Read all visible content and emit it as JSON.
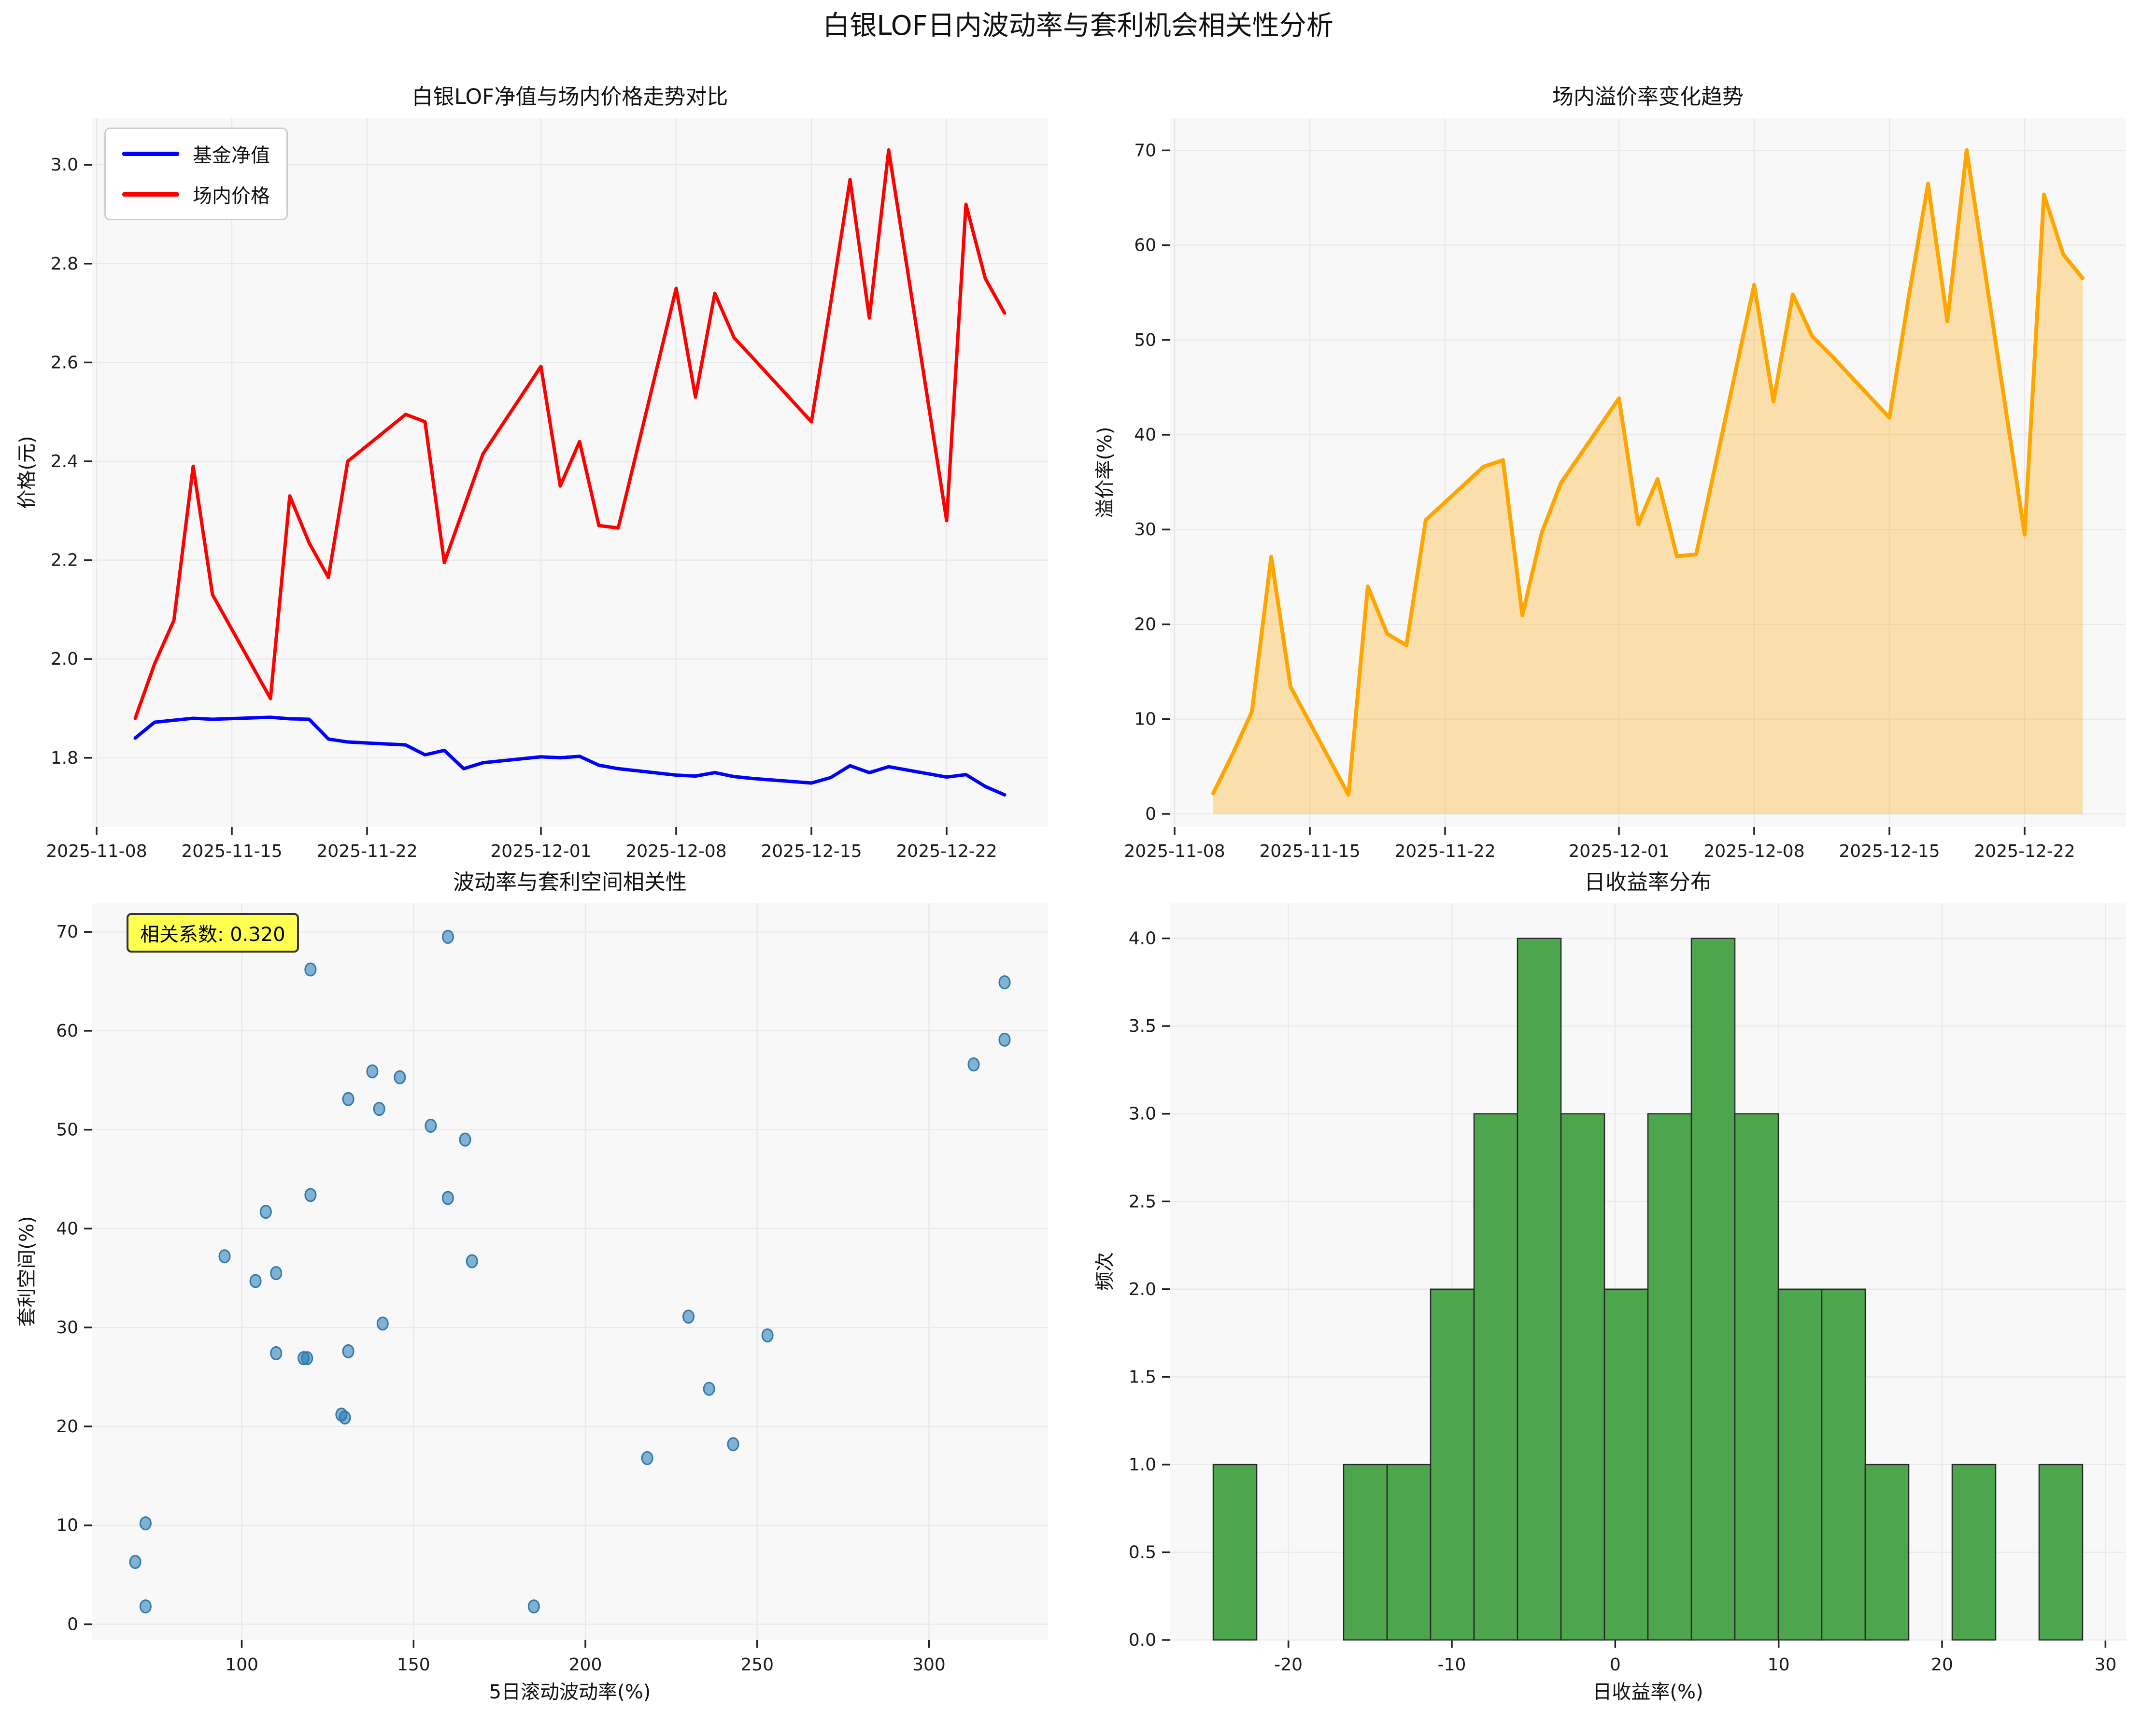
{
  "page_title": "白银LOF日内波动率与套利机会相关性分析",
  "theme": {
    "plot_bg": "#f8f8f8",
    "grid": "#e9e9e9",
    "tick_color": "#222222",
    "label_color": "#1a1a1a",
    "nav_color": "#0000ff",
    "price_color": "#ff0000",
    "premium_line_color": "#ffa500",
    "premium_fill_color": "rgba(255,165,0,0.30)",
    "scatter_fill": "rgba(31,119,180,0.55)",
    "scatter_edge": "#3178ab",
    "hist_fill": "#4da64d",
    "hist_edge": "#262626",
    "annotation_bg": "#ffff4f"
  },
  "chart_data": [
    {
      "id": "price_comparison",
      "type": "line",
      "title": "白银LOF净值与场内价格走势对比",
      "ylabel": "价格(元)",
      "legend": [
        "基金净值",
        "场内价格"
      ],
      "dates": [
        "2025-11-10",
        "2025-11-11",
        "2025-11-12",
        "2025-11-13",
        "2025-11-14",
        "2025-11-17",
        "2025-11-18",
        "2025-11-19",
        "2025-11-20",
        "2025-11-21",
        "2025-11-24",
        "2025-11-25",
        "2025-11-26",
        "2025-11-27",
        "2025-11-28",
        "2025-12-01",
        "2025-12-02",
        "2025-12-03",
        "2025-12-04",
        "2025-12-05",
        "2025-12-08",
        "2025-12-09",
        "2025-12-10",
        "2025-12-11",
        "2025-12-12",
        "2025-12-15",
        "2025-12-16",
        "2025-12-17",
        "2025-12-18",
        "2025-12-19",
        "2025-12-22",
        "2025-12-23",
        "2025-12-24",
        "2025-12-25"
      ],
      "series": [
        {
          "name": "基金净值",
          "color": "#0000ff",
          "values": [
            1.84,
            1.872,
            1.876,
            1.88,
            1.878,
            1.882,
            1.879,
            1.878,
            1.838,
            1.832,
            1.826,
            1.806,
            1.815,
            1.778,
            1.79,
            1.802,
            1.8,
            1.803,
            1.785,
            1.778,
            1.765,
            1.763,
            1.77,
            1.762,
            1.758,
            1.749,
            1.76,
            1.784,
            1.77,
            1.782,
            1.761,
            1.766,
            1.742,
            1.725
          ]
        },
        {
          "name": "场内价格",
          "color": "#ff0000",
          "values": [
            1.88,
            1.99,
            2.078,
            2.39,
            2.13,
            1.92,
            2.33,
            2.235,
            2.165,
            2.4,
            2.495,
            2.48,
            2.195,
            2.305,
            2.415,
            2.592,
            2.35,
            2.44,
            2.27,
            2.265,
            2.75,
            2.53,
            2.74,
            2.65,
            2.608,
            2.48,
            2.72,
            2.97,
            2.69,
            3.03,
            2.28,
            2.92,
            2.77,
            2.7
          ]
        }
      ],
      "x_tick_labels": [
        "2025-11-08",
        "2025-11-15",
        "2025-11-22",
        "2025-12-01",
        "2025-12-08",
        "2025-12-15",
        "2025-12-22"
      ],
      "y_tick_labels": [
        "1.8",
        "2.0",
        "2.2",
        "2.4",
        "2.6",
        "2.8",
        "3.0"
      ],
      "y_tick_values": [
        1.8,
        2.0,
        2.2,
        2.4,
        2.6,
        2.8,
        3.0
      ],
      "xlim_days": [
        -0.25,
        49.25
      ],
      "ylim": [
        1.66,
        3.095
      ]
    },
    {
      "id": "premium_trend",
      "type": "area",
      "title": "场内溢价率变化趋势",
      "ylabel": "溢价率(%)",
      "dates": [
        "2025-11-10",
        "2025-11-11",
        "2025-11-12",
        "2025-11-13",
        "2025-11-14",
        "2025-11-17",
        "2025-11-18",
        "2025-11-19",
        "2025-11-20",
        "2025-11-21",
        "2025-11-24",
        "2025-11-25",
        "2025-11-26",
        "2025-11-27",
        "2025-11-28",
        "2025-12-01",
        "2025-12-02",
        "2025-12-03",
        "2025-12-04",
        "2025-12-05",
        "2025-12-08",
        "2025-12-09",
        "2025-12-10",
        "2025-12-11",
        "2025-12-12",
        "2025-12-15",
        "2025-12-16",
        "2025-12-17",
        "2025-12-18",
        "2025-12-19",
        "2025-12-22",
        "2025-12-23",
        "2025-12-24",
        "2025-12-25"
      ],
      "values": [
        2.17,
        6.3,
        10.77,
        27.13,
        13.42,
        2.02,
        24.0,
        19.01,
        17.79,
        31.0,
        36.64,
        37.32,
        20.94,
        29.64,
        34.92,
        43.84,
        30.56,
        35.33,
        27.17,
        27.39,
        55.81,
        43.51,
        54.8,
        50.4,
        48.35,
        41.8,
        54.55,
        66.48,
        51.98,
        70.03,
        29.47,
        65.35,
        59.01,
        56.52
      ],
      "baseline": 0,
      "x_tick_labels": [
        "2025-11-08",
        "2025-11-15",
        "2025-11-22",
        "2025-12-01",
        "2025-12-08",
        "2025-12-15",
        "2025-12-22"
      ],
      "y_tick_labels": [
        "0",
        "10",
        "20",
        "30",
        "40",
        "50",
        "60",
        "70"
      ],
      "y_tick_values": [
        0,
        10,
        20,
        30,
        40,
        50,
        60,
        70
      ],
      "xlim_days": [
        -0.25,
        49.25
      ],
      "ylim": [
        -1.38,
        73.43
      ]
    },
    {
      "id": "vol_arb_scatter",
      "type": "scatter",
      "title": "波动率与套利空间相关性",
      "xlabel": "5日滚动波动率(%)",
      "ylabel": "套利空间(%)",
      "annotation": "相关系数: 0.320",
      "points": [
        [
          69,
          6.3
        ],
        [
          72,
          10.2
        ],
        [
          72,
          1.8
        ],
        [
          95,
          37.2
        ],
        [
          104,
          34.7
        ],
        [
          107,
          41.7
        ],
        [
          110,
          35.5
        ],
        [
          110,
          27.4
        ],
        [
          118,
          26.9
        ],
        [
          119,
          26.9
        ],
        [
          120,
          43.4
        ],
        [
          120,
          66.2
        ],
        [
          129,
          21.2
        ],
        [
          130,
          20.9
        ],
        [
          131,
          27.6
        ],
        [
          131,
          53.1
        ],
        [
          138,
          55.9
        ],
        [
          140,
          52.1
        ],
        [
          141,
          30.4
        ],
        [
          146,
          55.3
        ],
        [
          155,
          50.4
        ],
        [
          160,
          69.5
        ],
        [
          160,
          43.1
        ],
        [
          165,
          49.0
        ],
        [
          167,
          36.7
        ],
        [
          185,
          1.8
        ],
        [
          218,
          16.8
        ],
        [
          230,
          31.1
        ],
        [
          236,
          23.8
        ],
        [
          243,
          18.2
        ],
        [
          253,
          29.2
        ],
        [
          313,
          56.6
        ],
        [
          322,
          64.9
        ],
        [
          322,
          59.1
        ]
      ],
      "x_tick_labels": [
        "100",
        "150",
        "200",
        "250",
        "300"
      ],
      "x_tick_values": [
        100,
        150,
        200,
        250,
        300
      ],
      "y_tick_labels": [
        "0",
        "10",
        "20",
        "30",
        "40",
        "50",
        "60",
        "70"
      ],
      "y_tick_values": [
        0,
        10,
        20,
        30,
        40,
        50,
        60,
        70
      ],
      "xlim": [
        56.35,
        334.65
      ],
      "ylim": [
        -1.59,
        72.89
      ]
    },
    {
      "id": "returns_hist",
      "type": "histogram",
      "title": "日收益率分布",
      "xlabel": "日收益率(%)",
      "ylabel": "频次",
      "bin_start": -24.6,
      "bin_width": 2.66,
      "counts": [
        1,
        0,
        0,
        1,
        1,
        2,
        3,
        4,
        3,
        2,
        3,
        4,
        3,
        2,
        2,
        1,
        0,
        1,
        0,
        1
      ],
      "x_tick_labels": [
        "-20",
        "-10",
        "0",
        "10",
        "20",
        "30"
      ],
      "x_tick_values": [
        -20,
        -10,
        0,
        10,
        20,
        30
      ],
      "y_tick_labels": [
        "0.0",
        "0.5",
        "1.0",
        "1.5",
        "2.0",
        "2.5",
        "3.0",
        "3.5",
        "4.0"
      ],
      "y_tick_values": [
        0,
        0.5,
        1.0,
        1.5,
        2.0,
        2.5,
        3.0,
        3.5,
        4.0
      ],
      "xlim": [
        -27.26,
        31.26
      ],
      "ylim": [
        0,
        4.2
      ]
    }
  ]
}
